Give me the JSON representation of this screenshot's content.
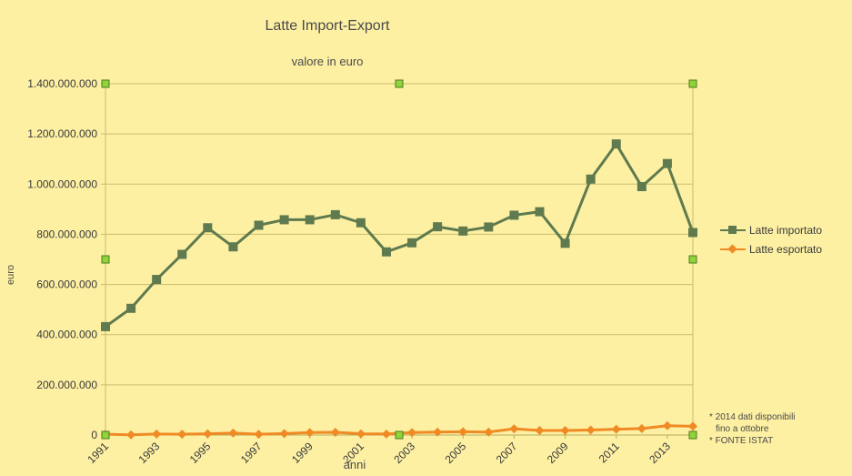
{
  "chart_data": {
    "type": "line",
    "title": "Latte Import-Export",
    "subtitle": "valore in euro",
    "xlabel": "anni",
    "ylabel": "euro",
    "x": [
      1991,
      1992,
      1993,
      1994,
      1995,
      1996,
      1997,
      1998,
      1999,
      2000,
      2001,
      2002,
      2003,
      2004,
      2005,
      2006,
      2007,
      2008,
      2009,
      2010,
      2011,
      2012,
      2013,
      2014
    ],
    "x_tick_labels": [
      "1991",
      "1993",
      "1995",
      "1997",
      "1999",
      "2001",
      "2003",
      "2005",
      "2007",
      "2009",
      "2011",
      "2013"
    ],
    "y_tick_labels": [
      "0",
      "200.000.000",
      "400.000.000",
      "600.000.000",
      "800.000.000",
      "1.000.000.000",
      "1.200.000.000",
      "1.400.000.000"
    ],
    "ylim": [
      0,
      1400000000
    ],
    "grid": "horizontal",
    "legend_position": "right",
    "series": [
      {
        "name": "Latte importato",
        "color": "#5f7a4e",
        "marker": "square",
        "values": [
          432000000,
          505000000,
          620000000,
          720000000,
          826000000,
          750000000,
          836000000,
          858000000,
          858000000,
          878000000,
          846000000,
          730000000,
          766000000,
          830000000,
          813000000,
          829000000,
          876000000,
          890000000,
          764000000,
          1020000000,
          1160000000,
          990000000,
          1082000000,
          807000000
        ]
      },
      {
        "name": "Latte esportato",
        "color": "#f08a24",
        "marker": "diamond",
        "values": [
          3000000,
          1000000,
          4000000,
          3000000,
          5000000,
          8000000,
          3000000,
          6000000,
          10000000,
          11000000,
          5000000,
          4000000,
          10000000,
          12000000,
          13000000,
          12000000,
          25000000,
          18000000,
          18000000,
          20000000,
          23000000,
          26000000,
          37000000,
          35000000
        ]
      }
    ]
  },
  "notes": [
    "* 2014 dati disponibili",
    "fino a ottobre",
    "* FONTE ISTAT"
  ]
}
